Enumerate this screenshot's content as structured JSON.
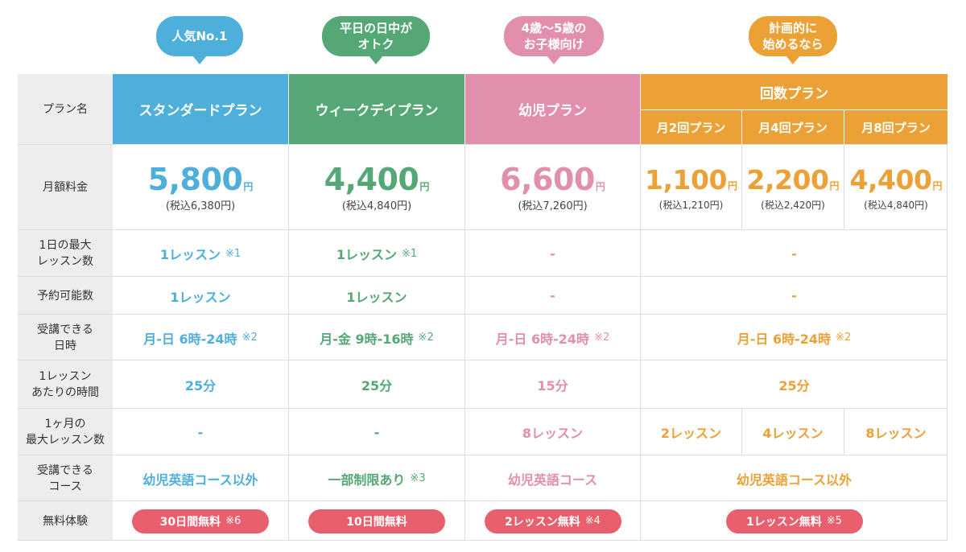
{
  "colors": {
    "blue": "#4eafda",
    "green": "#55a876",
    "pink": "#e18fac",
    "orange": "#eba136",
    "red": "#e8606d",
    "label_bg": "#ededed"
  },
  "bubbles": {
    "standard": [
      "人気No.1"
    ],
    "weekday": [
      "平日の日中が",
      "オトク"
    ],
    "kids": [
      "4歳〜5歳の",
      "お子様向け"
    ],
    "count": [
      "計画的に",
      "始めるなら"
    ]
  },
  "rows": {
    "plan_name": "プラン名",
    "monthly_fee": "月額料金",
    "daily_max": [
      "1日の最大",
      "レッスン数"
    ],
    "reservable": "予約可能数",
    "available_time": [
      "受講できる",
      "日時"
    ],
    "lesson_length": [
      "1レッスン",
      "あたりの時間"
    ],
    "monthly_max": [
      "1ヶ月の",
      "最大レッスン数"
    ],
    "courses": [
      "受講できる",
      "コース"
    ],
    "free_trial": "無料体験"
  },
  "plans": {
    "standard": {
      "name": "スタンダードプラン",
      "price": "5,800",
      "yen": "円",
      "tax": "(税込6,380円)",
      "daily_max": "1レッスン",
      "daily_max_note": "※1",
      "reservable": "1レッスン",
      "time": "月-日 6時-24時",
      "time_note": "※2",
      "length": "25分",
      "monthly_max": "-",
      "courses": "幼児英語コース以外",
      "courses_note": "",
      "trial": "30日間無料",
      "trial_note": "※6"
    },
    "weekday": {
      "name": "ウィークデイプラン",
      "price": "4,400",
      "yen": "円",
      "tax": "(税込4,840円)",
      "daily_max": "1レッスン",
      "daily_max_note": "※1",
      "reservable": "1レッスン",
      "time": "月-金 9時-16時",
      "time_note": "※2",
      "length": "25分",
      "monthly_max": "-",
      "courses": "一部制限あり",
      "courses_note": "※3",
      "trial": "10日間無料",
      "trial_note": ""
    },
    "kids": {
      "name": "幼児プラン",
      "price": "6,600",
      "yen": "円",
      "tax": "(税込7,260円)",
      "daily_max": "-",
      "reservable": "-",
      "time": "月-日 6時-24時",
      "time_note": "※2",
      "length": "15分",
      "monthly_max": "8レッスン",
      "courses": "幼児英語コース",
      "courses_note": "",
      "trial": "2レッスン無料",
      "trial_note": "※4"
    },
    "count": {
      "name": "回数プラン",
      "sub": [
        {
          "name": "月2回プラン",
          "price": "1,100",
          "yen": "円",
          "tax": "(税込1,210円)",
          "monthly_max": "2レッスン"
        },
        {
          "name": "月4回プラン",
          "price": "2,200",
          "yen": "円",
          "tax": "(税込2,420円)",
          "monthly_max": "4レッスン"
        },
        {
          "name": "月8回プラン",
          "price": "4,400",
          "yen": "円",
          "tax": "(税込4,840円)",
          "monthly_max": "8レッスン"
        }
      ],
      "daily_max": "-",
      "reservable": "-",
      "time": "月-日 6時-24時",
      "time_note": "※2",
      "length": "25分",
      "courses": "幼児英語コース以外",
      "courses_note": "",
      "trial": "1レッスン無料",
      "trial_note": "※5"
    }
  }
}
